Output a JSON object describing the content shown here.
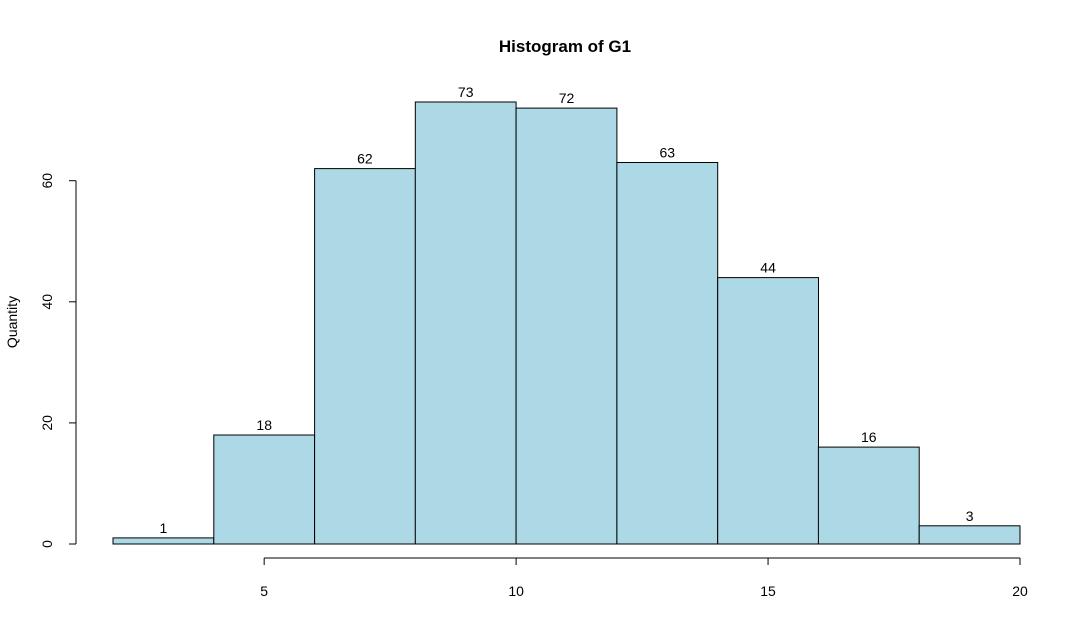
{
  "chart_data": {
    "type": "bar",
    "title": "Histogram of G1",
    "xlabel": "",
    "ylabel": "Quantity",
    "bins": [
      {
        "x0": 2,
        "x1": 4,
        "count": 1
      },
      {
        "x0": 4,
        "x1": 6,
        "count": 18
      },
      {
        "x0": 6,
        "x1": 8,
        "count": 62
      },
      {
        "x0": 8,
        "x1": 10,
        "count": 73
      },
      {
        "x0": 10,
        "x1": 12,
        "count": 72
      },
      {
        "x0": 12,
        "x1": 14,
        "count": 63
      },
      {
        "x0": 14,
        "x1": 16,
        "count": 44
      },
      {
        "x0": 16,
        "x1": 18,
        "count": 16
      },
      {
        "x0": 18,
        "x1": 20,
        "count": 3
      }
    ],
    "xlim": [
      2,
      20
    ],
    "ylim": [
      0,
      73
    ],
    "x_ticks": [
      5,
      10,
      15,
      20
    ],
    "y_ticks": [
      0,
      20,
      40,
      60
    ],
    "grid": false,
    "bar_color": "#ADD8E6",
    "bar_border_color": "#000000"
  }
}
